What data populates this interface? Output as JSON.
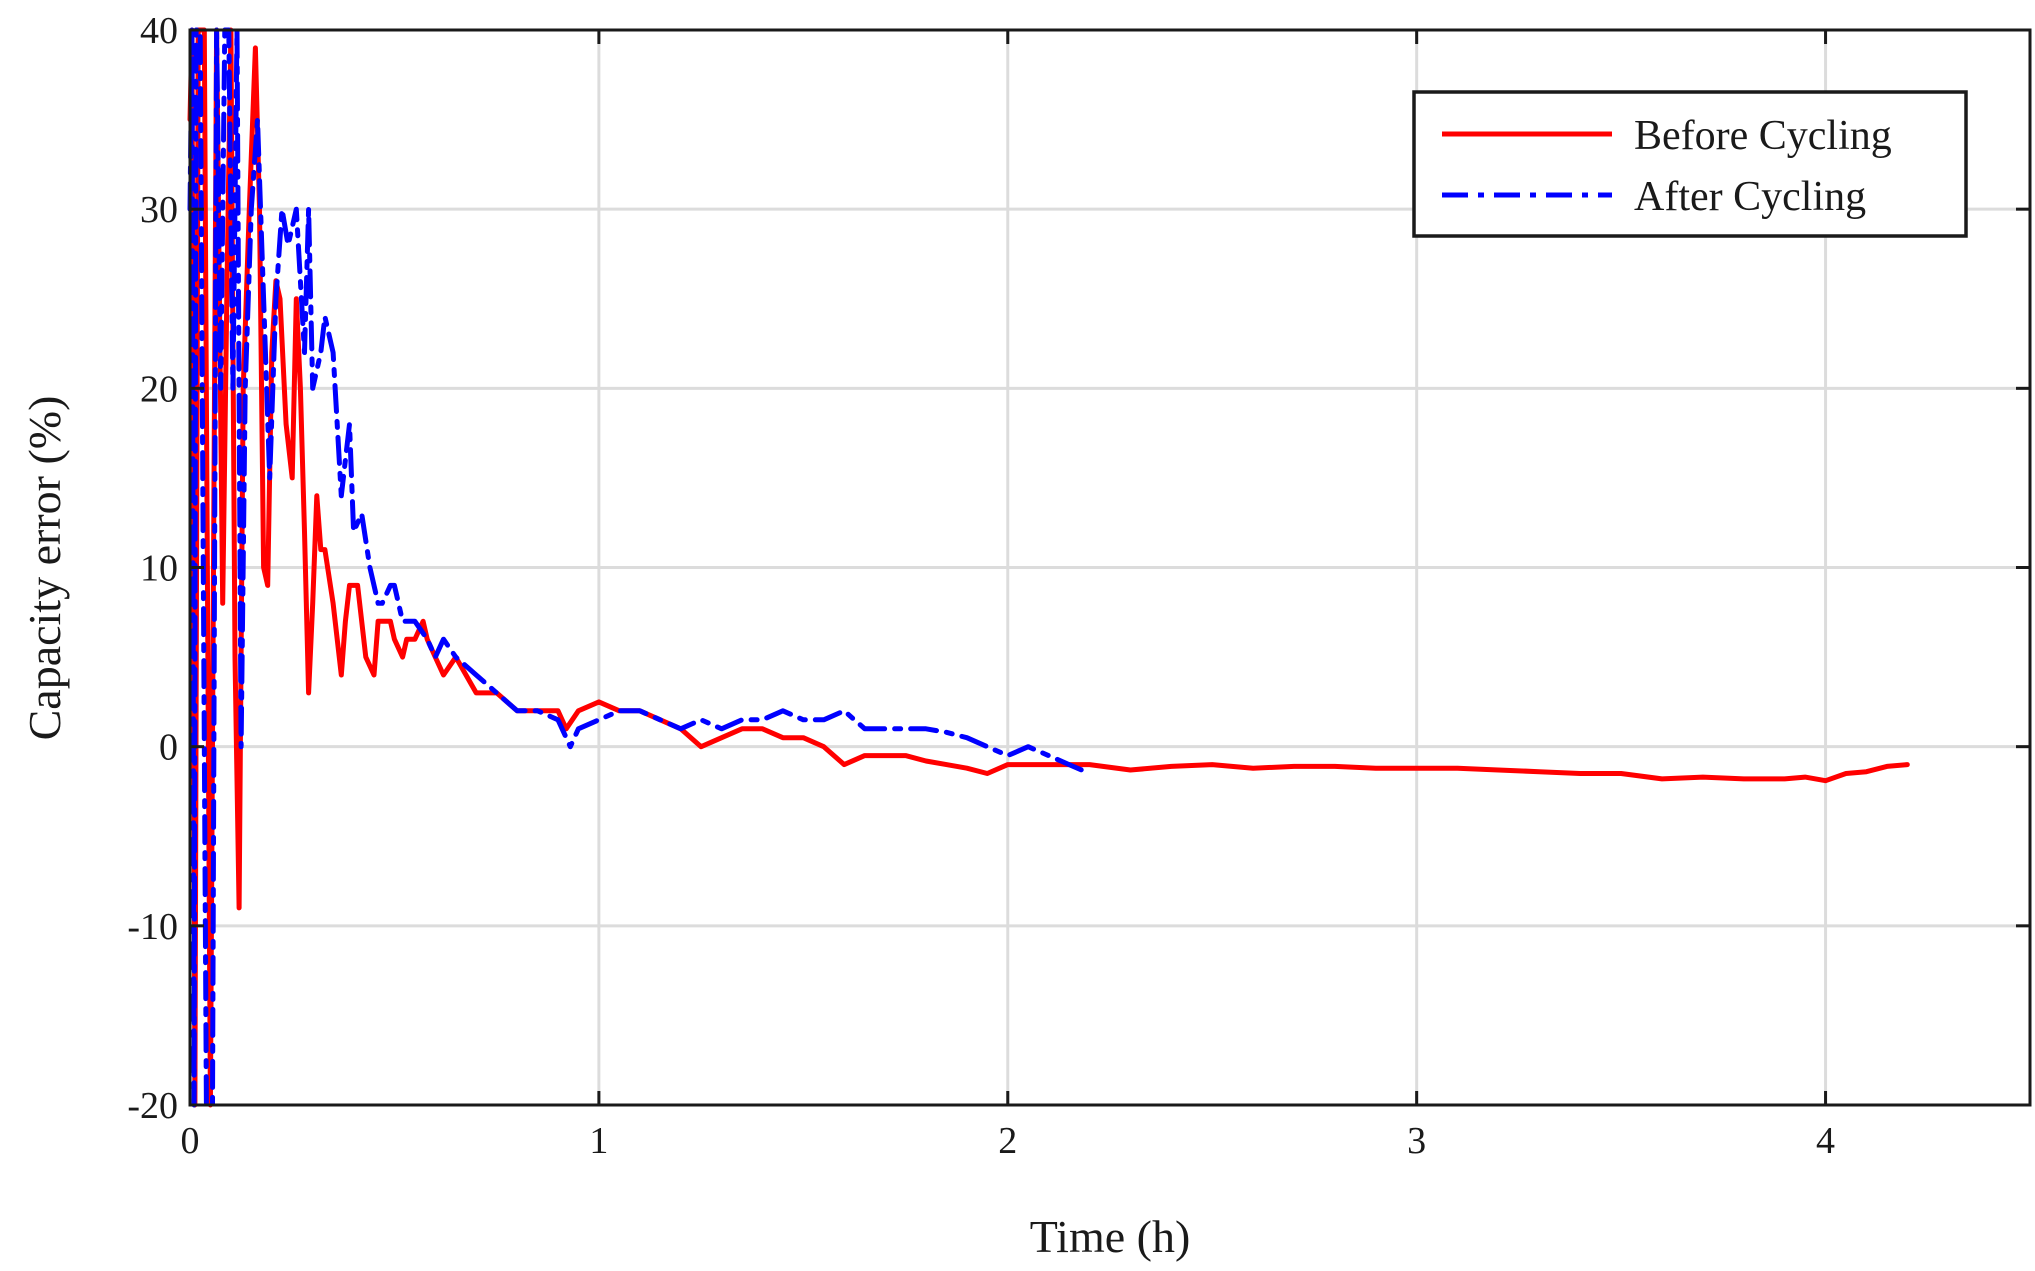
{
  "chart_data": {
    "type": "line",
    "xlabel": "Time (h)",
    "ylabel": "Capacity error (%)",
    "xlim": [
      0,
      4.5
    ],
    "ylim": [
      -20,
      40
    ],
    "xticks": [
      0,
      1,
      2,
      3,
      4
    ],
    "xtick_labels": [
      "0",
      "1",
      "2",
      "3",
      "4"
    ],
    "yticks": [
      -20,
      -10,
      0,
      10,
      20,
      30,
      40
    ],
    "ytick_labels": [
      "-20",
      "-10",
      "0",
      "10",
      "20",
      "30",
      "40"
    ],
    "grid": true,
    "legend_position": "top-right",
    "series": [
      {
        "name": "Before Cycling",
        "color": "#ff0000",
        "style": "solid",
        "x": [
          0.0,
          0.005,
          0.012,
          0.02,
          0.035,
          0.05,
          0.065,
          0.08,
          0.09,
          0.1,
          0.11,
          0.12,
          0.13,
          0.145,
          0.16,
          0.17,
          0.18,
          0.19,
          0.2,
          0.21,
          0.22,
          0.235,
          0.25,
          0.26,
          0.27,
          0.28,
          0.29,
          0.3,
          0.31,
          0.32,
          0.33,
          0.35,
          0.37,
          0.38,
          0.39,
          0.41,
          0.43,
          0.45,
          0.46,
          0.47,
          0.49,
          0.5,
          0.52,
          0.53,
          0.55,
          0.57,
          0.58,
          0.6,
          0.62,
          0.65,
          0.7,
          0.75,
          0.8,
          0.85,
          0.9,
          0.92,
          0.95,
          1.0,
          1.05,
          1.1,
          1.15,
          1.2,
          1.25,
          1.3,
          1.35,
          1.4,
          1.45,
          1.5,
          1.55,
          1.6,
          1.65,
          1.7,
          1.75,
          1.8,
          1.85,
          1.9,
          1.95,
          2.0,
          2.1,
          2.2,
          2.3,
          2.4,
          2.5,
          2.6,
          2.7,
          2.8,
          2.9,
          3.0,
          3.1,
          3.2,
          3.3,
          3.4,
          3.5,
          3.6,
          3.7,
          3.8,
          3.9,
          3.95,
          4.0,
          4.05,
          4.1,
          4.15,
          4.2
        ],
        "y": [
          35,
          40,
          -20,
          40,
          40,
          -20,
          40,
          8,
          25,
          40,
          5,
          -9,
          20,
          30,
          39,
          30,
          10,
          9,
          22,
          26,
          25,
          18,
          15,
          25,
          20,
          12,
          3,
          8,
          14,
          11,
          11,
          8,
          4,
          7,
          9,
          9,
          5,
          4,
          7,
          7,
          7,
          6,
          5,
          6,
          6,
          7,
          6,
          5,
          4,
          5,
          3,
          3,
          2,
          2,
          2,
          1,
          2,
          2.5,
          2,
          2,
          1.5,
          1,
          0,
          0.5,
          1,
          1,
          0.5,
          0.5,
          0,
          -1,
          -0.5,
          -0.5,
          -0.5,
          -0.8,
          -1,
          -1.2,
          -1.5,
          -1,
          -1,
          -1,
          -1.3,
          -1.1,
          -1,
          -1.2,
          -1.1,
          -1.1,
          -1.2,
          -1.2,
          -1.2,
          -1.3,
          -1.4,
          -1.5,
          -1.5,
          -1.8,
          -1.7,
          -1.8,
          -1.8,
          -1.7,
          -1.9,
          -1.5,
          -1.4,
          -1.1,
          -1.0
        ]
      },
      {
        "name": "After Cycling",
        "color": "#0000ff",
        "style": "dashdot",
        "x": [
          0.0,
          0.005,
          0.01,
          0.015,
          0.025,
          0.04,
          0.055,
          0.065,
          0.075,
          0.085,
          0.095,
          0.105,
          0.115,
          0.125,
          0.135,
          0.15,
          0.165,
          0.18,
          0.195,
          0.21,
          0.225,
          0.24,
          0.26,
          0.28,
          0.29,
          0.3,
          0.32,
          0.33,
          0.35,
          0.37,
          0.39,
          0.4,
          0.42,
          0.44,
          0.46,
          0.47,
          0.49,
          0.5,
          0.52,
          0.55,
          0.58,
          0.6,
          0.62,
          0.65,
          0.7,
          0.75,
          0.8,
          0.85,
          0.9,
          0.93,
          0.95,
          1.0,
          1.05,
          1.1,
          1.15,
          1.2,
          1.25,
          1.3,
          1.35,
          1.4,
          1.45,
          1.5,
          1.55,
          1.6,
          1.65,
          1.7,
          1.75,
          1.8,
          1.85,
          1.9,
          1.95,
          2.0,
          2.05,
          2.1,
          2.15,
          2.2
        ],
        "y": [
          30,
          40,
          -20,
          40,
          40,
          -20,
          -20,
          40,
          20,
          40,
          40,
          20,
          40,
          0,
          20,
          30,
          35,
          25,
          15,
          25,
          30,
          28,
          30,
          22,
          30,
          20,
          22,
          24,
          22,
          14,
          18,
          12,
          13,
          10,
          8,
          8,
          9,
          9,
          7,
          7,
          6,
          5,
          6,
          5,
          4,
          3,
          2,
          2,
          1.5,
          0,
          1,
          1.5,
          2,
          2,
          1.5,
          1,
          1.5,
          1,
          1.5,
          1.5,
          2,
          1.5,
          1.5,
          2,
          1,
          1,
          1,
          1,
          0.8,
          0.5,
          0,
          -0.5,
          0,
          -0.5,
          -1,
          -1.5
        ]
      }
    ]
  }
}
